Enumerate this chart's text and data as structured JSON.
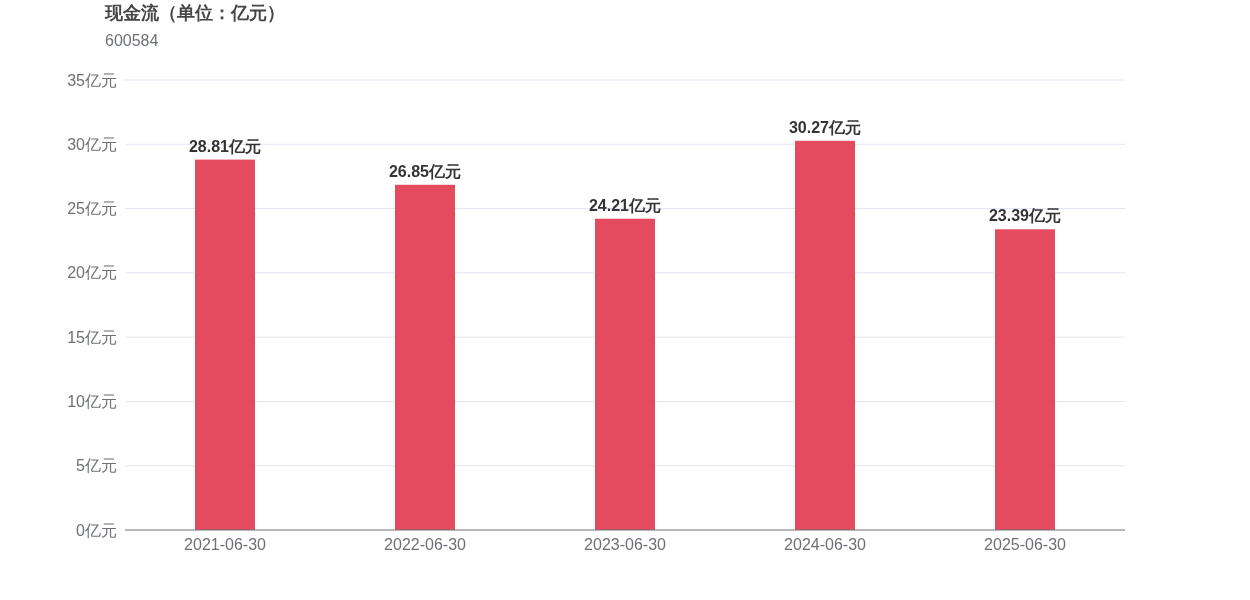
{
  "chart_data": {
    "type": "bar",
    "title": "现金流（单位：亿元）",
    "subtitle": "600584",
    "categories": [
      "2021-06-30",
      "2022-06-30",
      "2023-06-30",
      "2024-06-30",
      "2025-06-30"
    ],
    "values": [
      28.81,
      26.85,
      24.21,
      30.27,
      23.39
    ],
    "value_labels": [
      "28.81亿元",
      "26.85亿元",
      "24.21亿元",
      "30.27亿元",
      "23.39亿元"
    ],
    "color": "#e54b5e",
    "ylim": [
      0,
      35
    ],
    "yticks": [
      {
        "value": 0,
        "label": "0亿元"
      },
      {
        "value": 5,
        "label": "5亿元"
      },
      {
        "value": 10,
        "label": "10亿元"
      },
      {
        "value": 15,
        "label": "15亿元"
      },
      {
        "value": 20,
        "label": "20亿元"
      },
      {
        "value": 25,
        "label": "25亿元"
      },
      {
        "value": 30,
        "label": "30亿元"
      },
      {
        "value": 35,
        "label": "35亿元"
      }
    ],
    "grid": "y"
  }
}
